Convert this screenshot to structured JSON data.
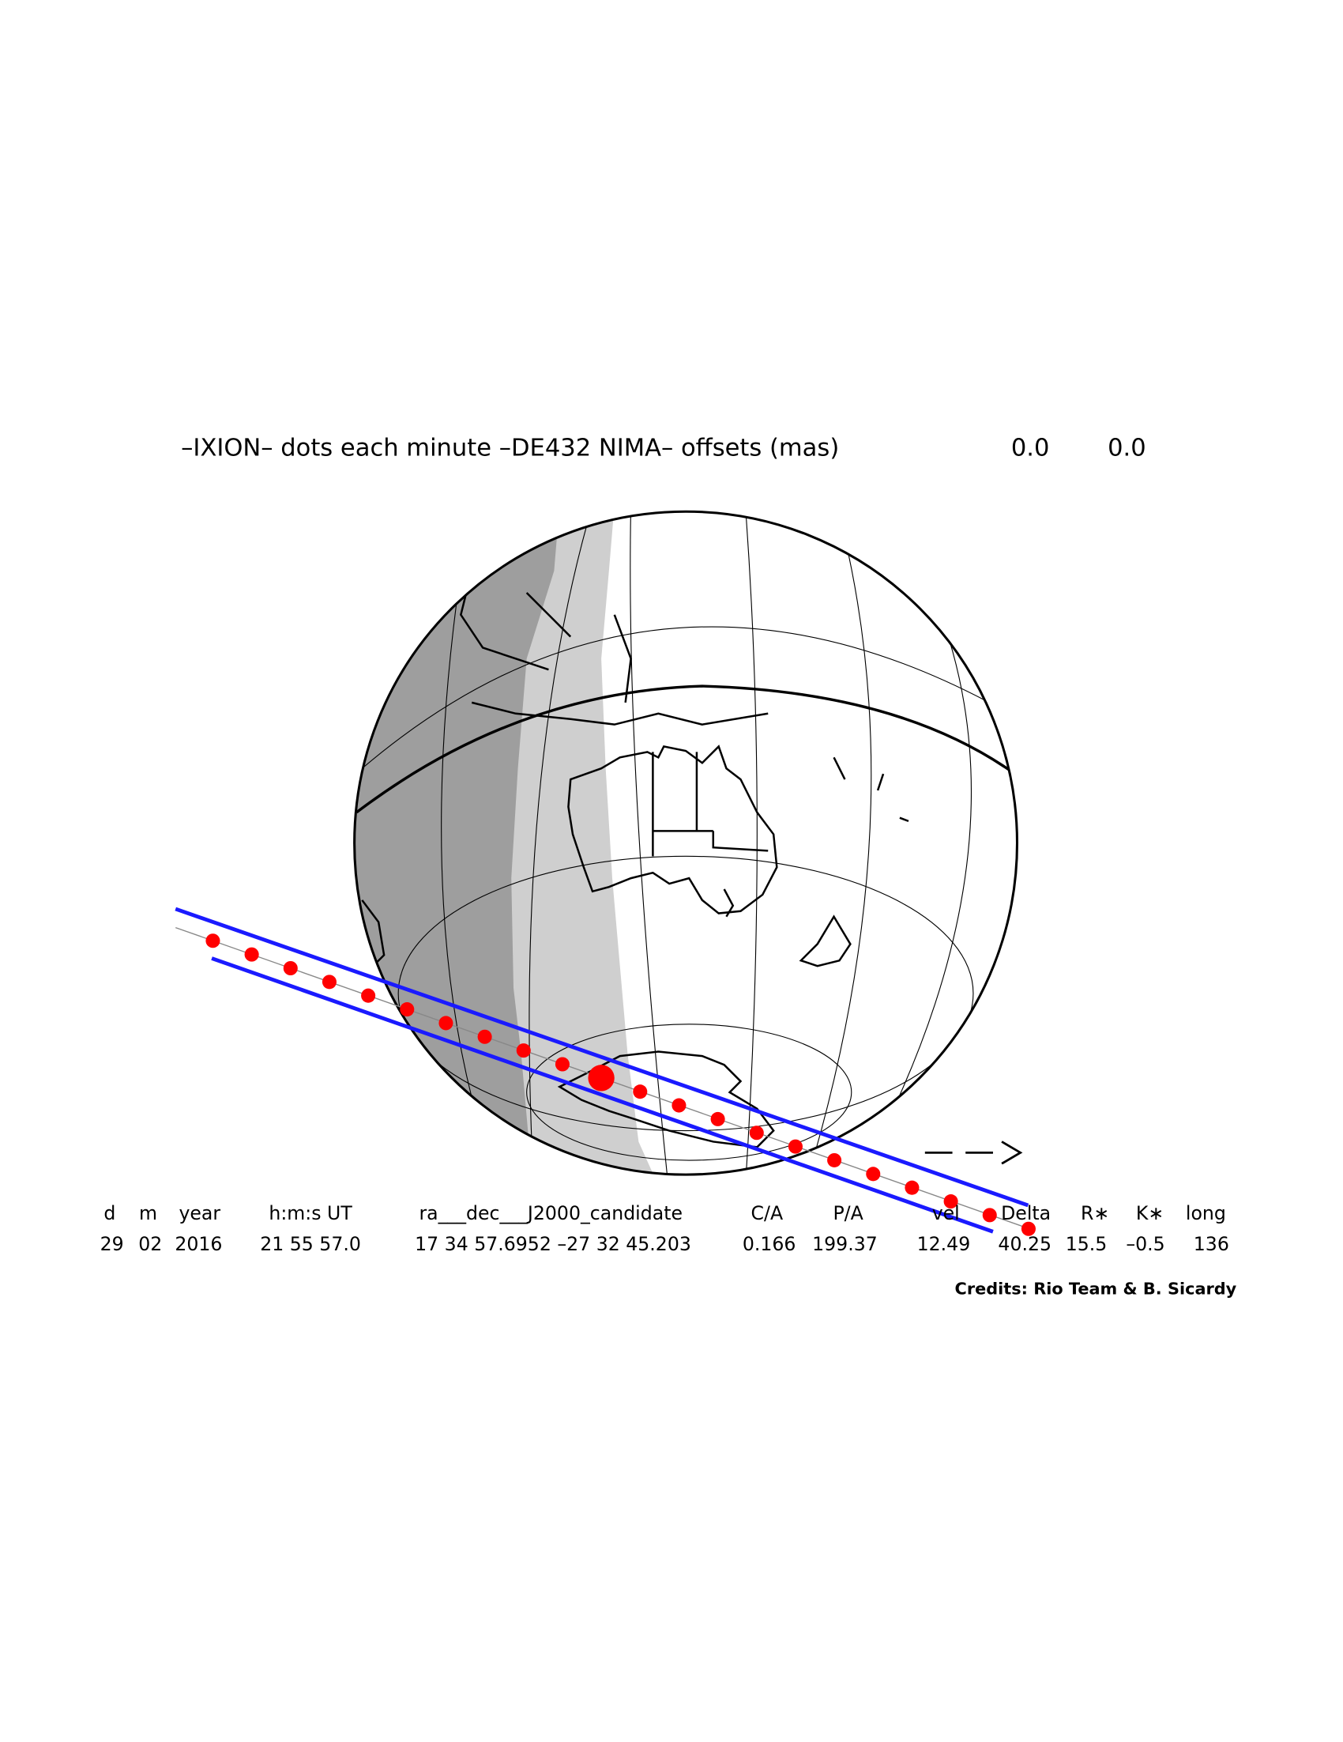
{
  "title": "–IXION– dots each minute –DE432 NIMA– offsets (mas)",
  "offsets": [
    "0.0",
    "0.0"
  ],
  "table": {
    "header": [
      "d",
      "m",
      "year",
      "h:m:s UT",
      "ra___dec___J2000_candidate",
      "C/A",
      "P/A",
      "vel",
      "Delta",
      "R∗",
      "K∗",
      "long"
    ],
    "rows": [
      [
        "29",
        "02",
        "2016",
        "21 55 57.0",
        "17 34 57.6952 –27 32 45.203",
        "0.166",
        "199.37",
        "12.49",
        "40.25",
        "15.5",
        "–0.5",
        "136"
      ]
    ]
  },
  "credits": "Credits: Rio Team & B. Sicardy"
}
